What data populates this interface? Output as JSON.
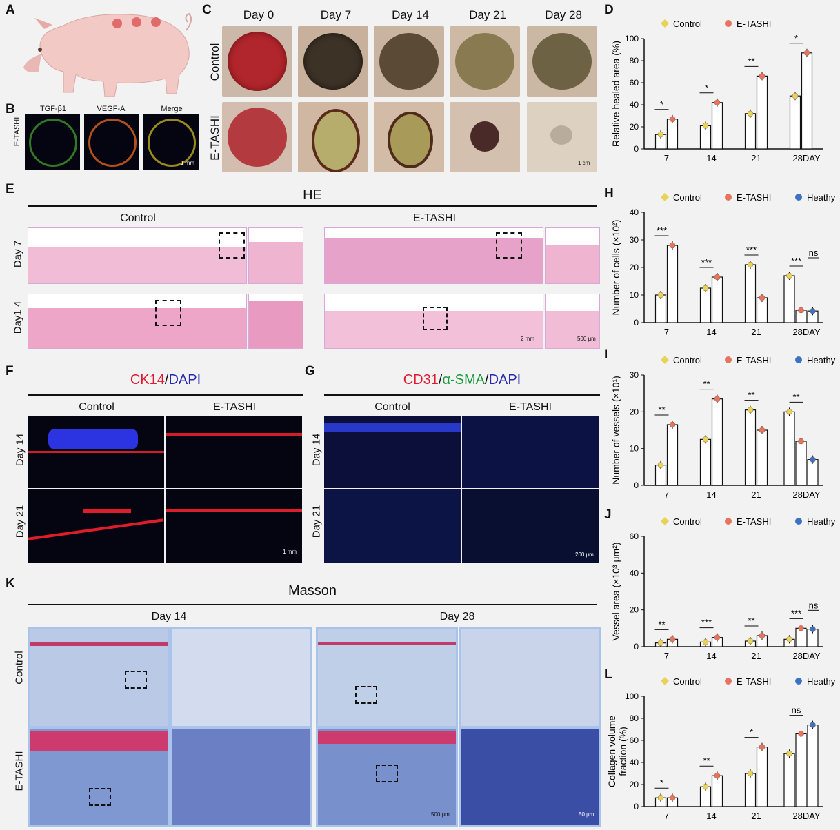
{
  "panel_letters": {
    "A": "A",
    "B": "B",
    "C": "C",
    "D": "D",
    "E": "E",
    "F": "F",
    "G": "G",
    "H": "H",
    "I": "I",
    "J": "J",
    "K": "K",
    "L": "L"
  },
  "panel_b": {
    "row_label": "E-TASHI",
    "cols": [
      "TGF-β1",
      "VEGF-A",
      "Merge"
    ],
    "scale": "1 mm"
  },
  "panel_c": {
    "days": [
      "Day 0",
      "Day 7",
      "Day 14",
      "Day 21",
      "Day 28"
    ],
    "rows": [
      "Control",
      "E-TASHI"
    ],
    "scale": "1 cm"
  },
  "panel_e": {
    "title": "HE",
    "groups": [
      "Control",
      "E-TASHI"
    ],
    "rows": [
      "Day 7",
      "Day1 4"
    ],
    "scale1": "2 mm",
    "scale2": "500 μm"
  },
  "panel_f": {
    "title_a": "CK14",
    "title_sep": "/",
    "title_b": "DAPI",
    "cols": [
      "Control",
      "E-TASHI"
    ],
    "rows": [
      "Day 14",
      "Day 21"
    ],
    "scale": "1 mm"
  },
  "panel_g": {
    "title_a": "CD31",
    "title_sep1": "/",
    "title_b": "α-SMA",
    "title_sep2": "/",
    "title_c": "DAPI",
    "cols": [
      "Control",
      "E-TASHI"
    ],
    "rows": [
      "Day 14",
      "Day 21"
    ],
    "scale": "200 μm"
  },
  "panel_k": {
    "title": "Masson",
    "cols": [
      "Day 14",
      "Day 28"
    ],
    "rows": [
      "Control",
      "E-TASHI"
    ],
    "scale1": "500 μm",
    "scale2": "50 μm"
  },
  "colors": {
    "control": "#e8d35a",
    "etashi": "#e8735f",
    "heathy": "#3a73c4",
    "red": "#e0192e",
    "green": "#1a9a3a",
    "blue": "#2a2ab0"
  },
  "charts_text": {
    "legend_control": "Control",
    "legend_etashi": "E-TASHI",
    "legend_heathy": "Heathy",
    "d_ylabel": "Relative healed area (%)",
    "h_ylabel": "Number of cells (×10²)",
    "i_ylabel": "Number of vessels (×10¹)",
    "j_ylabel": "Vessel area (×10³ μm²)",
    "l_ylabel1": "Collagen volume",
    "l_ylabel2": "fraction (%)"
  },
  "chart_data": [
    {
      "id": "D",
      "type": "bar",
      "categories": [
        "7",
        "14",
        "21",
        "28DAY"
      ],
      "ylim": [
        0,
        100
      ],
      "yticks": [
        0,
        20,
        40,
        60,
        80,
        100
      ],
      "ylabel": "Relative healed area (%)",
      "series": [
        {
          "name": "Control",
          "values": [
            13,
            21,
            32,
            48
          ]
        },
        {
          "name": "E-TASHI",
          "values": [
            27,
            42,
            66,
            87
          ]
        }
      ],
      "significance": [
        "*",
        "*",
        "**",
        "*"
      ]
    },
    {
      "id": "H",
      "type": "bar",
      "categories": [
        "7",
        "14",
        "21",
        "28DAY"
      ],
      "ylim": [
        0,
        40
      ],
      "yticks": [
        0,
        10,
        20,
        30,
        40
      ],
      "ylabel": "Number of cells (×10²)",
      "series": [
        {
          "name": "Control",
          "values": [
            10,
            12.5,
            21,
            17
          ]
        },
        {
          "name": "E-TASHI",
          "values": [
            28,
            16.5,
            9,
            4.5
          ]
        },
        {
          "name": "Heathy",
          "values": [
            null,
            null,
            null,
            4.2
          ]
        }
      ],
      "significance": [
        "***",
        "***",
        "***",
        "***",
        "ns"
      ]
    },
    {
      "id": "I",
      "type": "bar",
      "categories": [
        "7",
        "14",
        "21",
        "28DAY"
      ],
      "ylim": [
        0,
        30
      ],
      "yticks": [
        0,
        10,
        20,
        30
      ],
      "ylabel": "Number of vessels (×10¹)",
      "series": [
        {
          "name": "Control",
          "values": [
            5.5,
            12.5,
            20.5,
            20
          ]
        },
        {
          "name": "E-TASHI",
          "values": [
            16.5,
            23.5,
            15,
            12
          ]
        },
        {
          "name": "Heathy",
          "values": [
            null,
            null,
            null,
            7
          ]
        }
      ],
      "significance": [
        "**",
        "**",
        "**",
        "**"
      ]
    },
    {
      "id": "J",
      "type": "bar",
      "categories": [
        "7",
        "14",
        "21",
        "28DAY"
      ],
      "ylim": [
        0,
        60
      ],
      "yticks": [
        0,
        20,
        40,
        60
      ],
      "ylabel": "Vessel area (×10³ μm²)",
      "series": [
        {
          "name": "Control",
          "values": [
            2,
            2.5,
            3,
            4
          ]
        },
        {
          "name": "E-TASHI",
          "values": [
            4,
            5,
            6,
            10
          ]
        },
        {
          "name": "Heathy",
          "values": [
            null,
            null,
            null,
            9.5
          ]
        }
      ],
      "significance": [
        "**",
        "***",
        "**",
        "***",
        "ns"
      ]
    },
    {
      "id": "L",
      "type": "bar",
      "categories": [
        "7",
        "14",
        "21",
        "28DAY"
      ],
      "ylim": [
        0,
        100
      ],
      "yticks": [
        0,
        20,
        40,
        60,
        80,
        100
      ],
      "ylabel": "Collagen volume fraction (%)",
      "series": [
        {
          "name": "Control",
          "values": [
            8,
            18,
            30,
            48
          ]
        },
        {
          "name": "E-TASHI",
          "values": [
            8,
            28,
            54,
            66
          ]
        },
        {
          "name": "Heathy",
          "values": [
            null,
            null,
            null,
            74
          ]
        }
      ],
      "significance": [
        "*",
        "**",
        "*",
        "ns"
      ]
    }
  ]
}
